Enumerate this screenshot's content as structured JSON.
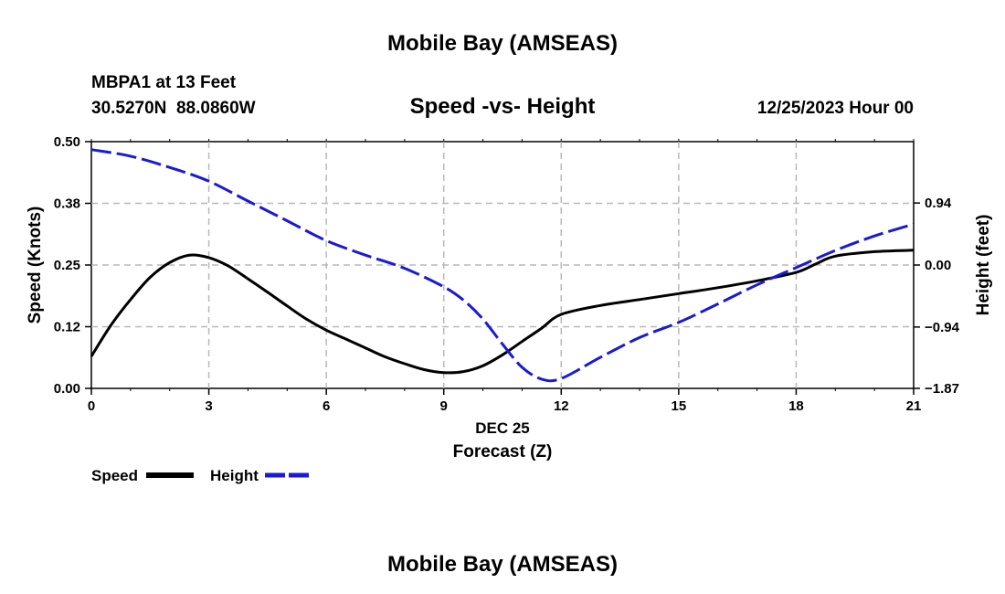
{
  "page": {
    "title": "Mobile Bay (AMSEAS)",
    "footer_title": "Mobile Bay (AMSEAS)"
  },
  "station": {
    "name_line": "MBPA1 at 13 Feet",
    "coords_line": "30.5270N  88.0860W"
  },
  "timestamp": "12/25/2023 Hour 00",
  "chart_data": {
    "type": "line",
    "title": "Speed -vs- Height",
    "xlabel_date": "DEC 25",
    "xlabel": "Forecast (Z)",
    "ylabel": "Speed (Knots)",
    "y2label": "Height (feet)",
    "xlim": [
      0,
      21
    ],
    "ylim": [
      0,
      0.5
    ],
    "y2lim": [
      -1.87,
      1.87
    ],
    "x_ticks": [
      0,
      3,
      6,
      9,
      12,
      15,
      18,
      21
    ],
    "x_tick_labels": [
      "0",
      "3",
      "6",
      "9",
      "12",
      "15",
      "18",
      "21"
    ],
    "y_ticks": [
      0.0,
      0.125,
      0.25,
      0.375,
      0.5
    ],
    "y_tick_labels": [
      "0.00",
      "0.12",
      "0.25",
      "0.38",
      "0.50"
    ],
    "y2_ticks": [
      -1.87,
      -0.94,
      0.0,
      0.94
    ],
    "y2_tick_labels": [
      "−1.87",
      "−0.94",
      "0.00",
      "0.94"
    ],
    "grid": true,
    "legend_position": "bottom-left",
    "series": [
      {
        "name": "Speed",
        "axis": "left",
        "color": "#000000",
        "style": "solid",
        "x": [
          0,
          0.5,
          1,
          1.5,
          2,
          2.5,
          3,
          3.5,
          4,
          4.5,
          5,
          5.5,
          6,
          6.5,
          7,
          7.5,
          8,
          8.5,
          9,
          9.5,
          10,
          10.5,
          11,
          11.5,
          12,
          13,
          14,
          15,
          16,
          17,
          18,
          18.5,
          19,
          20,
          21
        ],
        "values": [
          0.065,
          0.128,
          0.18,
          0.225,
          0.255,
          0.27,
          0.265,
          0.248,
          0.222,
          0.195,
          0.167,
          0.14,
          0.118,
          0.1,
          0.082,
          0.064,
          0.05,
          0.038,
          0.032,
          0.034,
          0.046,
          0.068,
          0.095,
          0.122,
          0.15,
          0.168,
          0.18,
          0.192,
          0.204,
          0.218,
          0.235,
          0.252,
          0.268,
          0.277,
          0.28
        ]
      },
      {
        "name": "Height",
        "axis": "right",
        "color": "#1a1ad6",
        "style": "dashed",
        "x": [
          0,
          1,
          2,
          3,
          4,
          5,
          6,
          7,
          8,
          9,
          9.5,
          10,
          10.5,
          11,
          11.5,
          12,
          13,
          14,
          15,
          16,
          17,
          18,
          19,
          20,
          21
        ],
        "values": [
          1.75,
          1.65,
          1.48,
          1.27,
          0.97,
          0.67,
          0.37,
          0.15,
          -0.05,
          -0.33,
          -0.53,
          -0.82,
          -1.2,
          -1.55,
          -1.73,
          -1.72,
          -1.4,
          -1.1,
          -0.87,
          -0.59,
          -0.3,
          -0.04,
          0.22,
          0.44,
          0.62
        ]
      }
    ]
  }
}
